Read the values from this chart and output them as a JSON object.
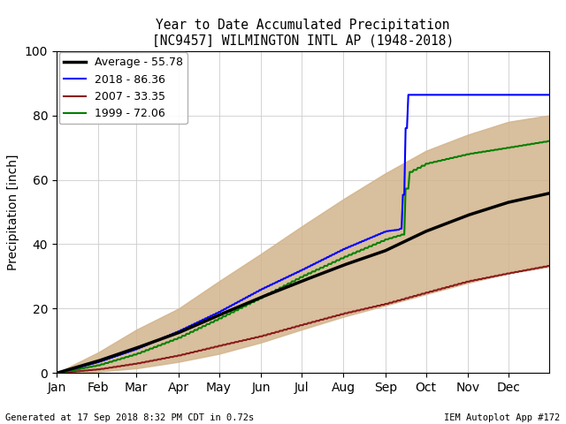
{
  "title_line1": "Year to Date Accumulated Precipitation",
  "title_line2": "[NC9457] WILMINGTON INTL AP (1948-2018)",
  "ylabel": "Precipitation [inch]",
  "footer_left": "Generated at 17 Sep 2018 8:32 PM CDT in 0.72s",
  "footer_right": "IEM Autoplot App #172",
  "legend_entries": [
    {
      "label": "Average - 55.78",
      "color": "#000000",
      "lw": 2.5
    },
    {
      "label": "2018 - 86.36",
      "color": "#0000ff",
      "lw": 1.5
    },
    {
      "label": "2007 - 33.35",
      "color": "#8b1a1a",
      "lw": 1.5
    },
    {
      "label": "1999 - 72.06",
      "color": "#008000",
      "lw": 1.5
    }
  ],
  "shade_color": "#d2b48c",
  "shade_alpha": 0.85,
  "ylim": [
    0,
    100
  ],
  "yticks": [
    0,
    20,
    40,
    60,
    80,
    100
  ],
  "month_labels": [
    "Jan",
    "Feb",
    "Mar",
    "Apr",
    "May",
    "Jun",
    "Jul",
    "Aug",
    "Sep",
    "Oct",
    "Nov",
    "Dec"
  ],
  "month_ticks": [
    1,
    32,
    60,
    91,
    121,
    152,
    182,
    213,
    244,
    274,
    305,
    335
  ],
  "avg_color": "#000000",
  "color_2018": "#0000ff",
  "color_2007": "#8b1a1a",
  "color_1999": "#008000",
  "avg_days": [
    1,
    32,
    60,
    91,
    121,
    152,
    182,
    213,
    244,
    274,
    305,
    335,
    365
  ],
  "avg_vals": [
    0,
    3.8,
    7.8,
    12.5,
    18.0,
    23.5,
    28.5,
    33.5,
    38.0,
    44.0,
    49.0,
    53.0,
    55.78
  ],
  "days_2018": [
    1,
    32,
    60,
    91,
    121,
    152,
    182,
    213,
    244,
    253,
    256,
    260,
    261,
    365
  ],
  "vals_2018": [
    0,
    3.5,
    7.5,
    13.0,
    19.0,
    26.0,
    32.0,
    38.5,
    44.0,
    44.5,
    45.0,
    86.36,
    86.36,
    86.36
  ],
  "days_2007": [
    1,
    32,
    60,
    91,
    121,
    152,
    182,
    213,
    244,
    274,
    305,
    335,
    365
  ],
  "vals_2007": [
    0,
    1.2,
    3.0,
    5.5,
    8.5,
    11.5,
    15.0,
    18.5,
    21.5,
    25.0,
    28.5,
    31.0,
    33.35
  ],
  "days_1999": [
    1,
    32,
    60,
    91,
    121,
    152,
    182,
    213,
    244,
    256,
    260,
    274,
    305,
    335,
    365
  ],
  "vals_1999": [
    0,
    2.5,
    6.0,
    11.0,
    17.0,
    23.5,
    30.0,
    36.0,
    41.5,
    43.0,
    62.0,
    65.0,
    68.0,
    70.0,
    72.06
  ],
  "shade_min_days": [
    1,
    32,
    60,
    91,
    121,
    152,
    182,
    213,
    244,
    274,
    305,
    335,
    365
  ],
  "shade_min_vals": [
    0,
    0.5,
    1.5,
    3.5,
    6.0,
    9.5,
    13.5,
    17.5,
    21.0,
    24.5,
    28.0,
    31.0,
    33.0
  ],
  "shade_max_days": [
    1,
    32,
    60,
    91,
    121,
    152,
    182,
    213,
    244,
    274,
    305,
    335,
    365
  ],
  "shade_max_vals": [
    0,
    6.5,
    13.5,
    20.0,
    28.5,
    37.0,
    45.5,
    54.0,
    62.0,
    69.0,
    74.0,
    78.0,
    80.0
  ]
}
